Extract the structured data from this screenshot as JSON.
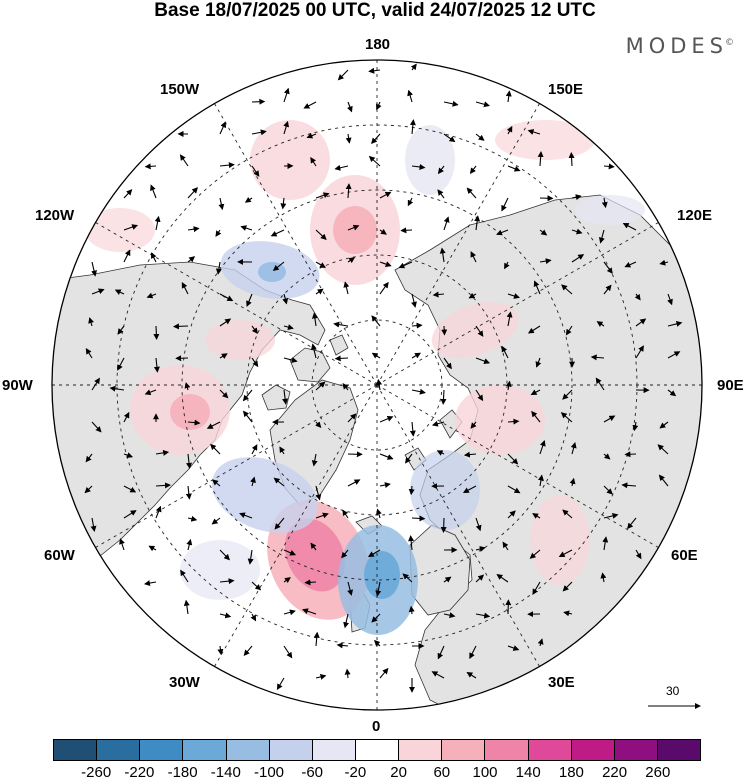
{
  "title": "Base 18/07/2025 00 UTC, valid 24/07/2025 12 UTC",
  "brand": {
    "name": "MODES",
    "mark": "©"
  },
  "map": {
    "projection": "north polar stereographic",
    "longitude_labels": {
      "top": "180",
      "top_left": "150W",
      "top_right": "150E",
      "upper_left": "120W",
      "upper_right": "120E",
      "left": "90W",
      "right": "90E",
      "lower_left": "60W",
      "lower_right": "60E",
      "bottom_left": "30W",
      "bottom_right": "30E",
      "bottom": "0"
    },
    "colors": {
      "land": "#e3e3e3",
      "ocean": "#ffffff",
      "coast": "#333333",
      "graticule": "#222222"
    }
  },
  "vector_scale": {
    "label": "30"
  },
  "colorbar": {
    "colors": [
      "#1f4f74",
      "#2a6ea0",
      "#3f8cc4",
      "#6aa9d8",
      "#98bde3",
      "#c5d1ec",
      "#e6e6f4",
      "#ffffff",
      "#f9d5d9",
      "#f6b0ba",
      "#ee85a8",
      "#e0489a",
      "#be1b86",
      "#8f0f80",
      "#5a0a6b"
    ],
    "ticks": [
      "-260",
      "-220",
      "-180",
      "-140",
      "-100",
      "-60",
      "-20",
      "20",
      "60",
      "100",
      "140",
      "180",
      "220",
      "260"
    ]
  }
}
